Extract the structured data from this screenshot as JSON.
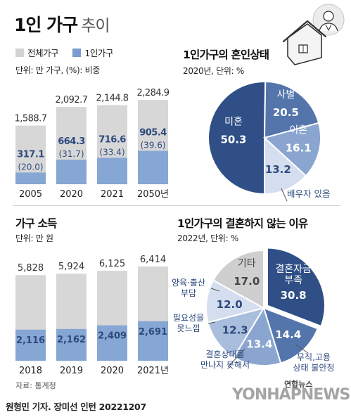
{
  "header": {
    "title_bold": "1인 가구",
    "title_light": "추이"
  },
  "legend": [
    {
      "label": "전체가구",
      "color": "#d2d2d2"
    },
    {
      "label": "1인가구",
      "color": "#7a9ccf"
    }
  ],
  "colors": {
    "total_bar": "#d7d7d7",
    "single_bar": "#86a6d4",
    "dark_value": "#2d4a7e",
    "divider": "#cfcfcf",
    "pie_dark": "#2f4f86",
    "pie_mid": "#5475ab",
    "pie_light": "#8aa5cf",
    "pie_lighter": "#a9bddd",
    "pie_pale": "#d5deee",
    "pie_gray": "#cfcfcf"
  },
  "households": {
    "unit": "단위: 만 가구, (%): 비중"
  },
  "marital": {
    "title": "1인가구의 혼인상태",
    "unit": "2020년, 단위: %",
    "callout": "배우자 있음"
  },
  "income": {
    "title": "가구 소득",
    "unit": "단위: 만 원"
  },
  "reasons": {
    "title": "1인가구의 결혼하지 않는 이유",
    "unit": "2022년, 단위: %",
    "callouts": {
      "unstable": [
        "무직,고용",
        "상태 불안정"
      ],
      "no_partner": [
        "결혼상대를",
        "만나지 못해서"
      ],
      "not_needed": [
        "필요성을",
        "못느낌"
      ],
      "childcare": [
        "양육·출산",
        "부담"
      ]
    }
  },
  "footer": {
    "source": "자료: 통계청",
    "credit": "원형민 기자. 장미선 인턴  20221207",
    "logo_text": "연합뉴스",
    "watermark": "YONHAPNEWS"
  },
  "chart_data": [
    {
      "type": "bar",
      "title": "1인 가구 추이",
      "categories": [
        "2005",
        "2020",
        "2021",
        "2050년"
      ],
      "series": [
        {
          "name": "전체가구",
          "values": [
            1588.7,
            2092.7,
            2144.8,
            2284.9
          ],
          "labels": [
            "1,588.7",
            "2,092.7",
            "2,144.8",
            "2,284.9"
          ]
        },
        {
          "name": "1인가구",
          "values": [
            317.1,
            664.3,
            716.6,
            905.4
          ],
          "labels": [
            "317.1",
            "664.3",
            "716.6",
            "905.4"
          ],
          "shares": [
            "(20.0)",
            "(31.7)",
            "(33.4)",
            "(39.6)"
          ]
        }
      ],
      "ylim": [
        0,
        2400
      ]
    },
    {
      "type": "pie",
      "title": "1인가구의 혼인상태",
      "slices": [
        {
          "label": "미혼",
          "value": 50.3
        },
        {
          "label": "사별",
          "value": 20.5
        },
        {
          "label": "이혼",
          "value": 16.1
        },
        {
          "label": "",
          "value": 13.2
        }
      ]
    },
    {
      "type": "bar",
      "title": "가구 소득",
      "categories": [
        "2018",
        "2019",
        "2020",
        "2021년"
      ],
      "series": [
        {
          "name": "전체가구",
          "values": [
            5828,
            5924,
            6125,
            6414
          ],
          "labels": [
            "5,828",
            "5,924",
            "6,125",
            "6,414"
          ]
        },
        {
          "name": "1인가구",
          "values": [
            2116,
            2162,
            2409,
            2691
          ],
          "labels": [
            "2,116",
            "2,162",
            "2,409",
            "2,691"
          ]
        }
      ],
      "ylim": [
        0,
        6700
      ]
    },
    {
      "type": "pie",
      "title": "1인가구의 결혼하지 않는 이유",
      "slices": [
        {
          "label": "결혼자금 부족",
          "value": 30.8
        },
        {
          "label": "",
          "value": 14.4
        },
        {
          "label": "",
          "value": 13.4
        },
        {
          "label": "",
          "value": 12.3
        },
        {
          "label": "",
          "value": 12.0
        },
        {
          "label": "기타",
          "value": 17.0
        }
      ]
    }
  ]
}
